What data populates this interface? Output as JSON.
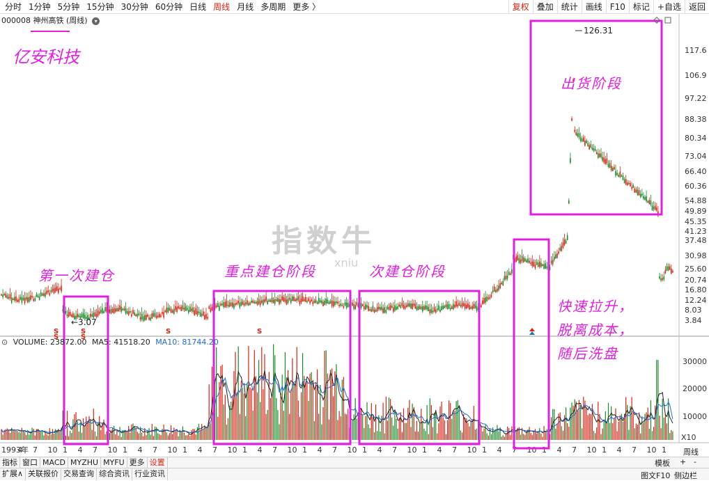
{
  "toolbar": {
    "periods": [
      "分时",
      "1分钟",
      "5分钟",
      "15分钟",
      "30分钟",
      "60分钟",
      "日线",
      "周线",
      "月线",
      "多周期",
      "更多 〉"
    ],
    "active_period": "周线",
    "right_tools": [
      "复权",
      "叠加",
      "统计",
      "画线",
      "F10",
      "标记",
      "+自选",
      "返回"
    ],
    "active_tool": "复权"
  },
  "stock": {
    "code": "000008",
    "name": "神州高铁 (周线)"
  },
  "price_axis": [
    "126.31",
    "117.6",
    "106.9",
    "97.22",
    "88.38",
    "80.34",
    "73.04",
    "66.40",
    "60.36",
    "54.88",
    "49.89",
    "45.35",
    "41.23",
    "37.48",
    "30.98",
    "25.60",
    "20.74",
    "16.80",
    "12.24",
    "8.03",
    "3.84"
  ],
  "high_label": "126.31",
  "low_label": "3.07",
  "volume_axis": [
    "30000",
    "20000",
    "10000"
  ],
  "x_labels": [
    "1993年",
    "4",
    "7",
    "10",
    "1",
    "4",
    "7",
    "10",
    "1",
    "4",
    "7",
    "10",
    "1",
    "4",
    "7",
    "10",
    "1",
    "4",
    "7",
    "10",
    "1",
    "4",
    "7",
    "10",
    "1",
    "4",
    "7",
    "10",
    "1",
    "4",
    "7",
    "10",
    "1",
    "4",
    "7",
    "10",
    "1",
    "4",
    "7",
    "10",
    "1",
    "4",
    "7",
    "10",
    "1"
  ],
  "volume_legend": {
    "label": "VOLUME: 23872.00",
    "ma5": "MA5: 41518.20",
    "ma10": "MA10: 81744.20"
  },
  "annotations": {
    "title": "亿安科技",
    "box1": "第一次建仓",
    "box2": "重点建仓阶段",
    "box3": "次建仓阶段",
    "box4_lines": [
      "快速拉升，",
      "脱离成本，",
      "随后洗盘"
    ],
    "box5": "出货阶段"
  },
  "watermark": {
    "text": "指数牛",
    "sub": "xniu"
  },
  "x10": "X10",
  "bottom1": [
    "指标",
    "窗口",
    "MACD",
    "MYZHU",
    "MYFU",
    "更多",
    "设置"
  ],
  "bottom1_active": "设置",
  "bottom1_right": {
    "template": "模板",
    "plus": "+",
    "minus": "-",
    "weekly": "周线"
  },
  "bottom2": [
    "扩展∧",
    "关联报价",
    "交易查询",
    "综合资讯",
    "行业资讯"
  ],
  "bottom2_right": {
    "f10": "图文F10",
    "side": "侧边栏"
  },
  "colors": {
    "accent": "#e020e0",
    "up": "#d21",
    "down": "#1a8a2a",
    "ma_blue": "#1a6dd0"
  }
}
